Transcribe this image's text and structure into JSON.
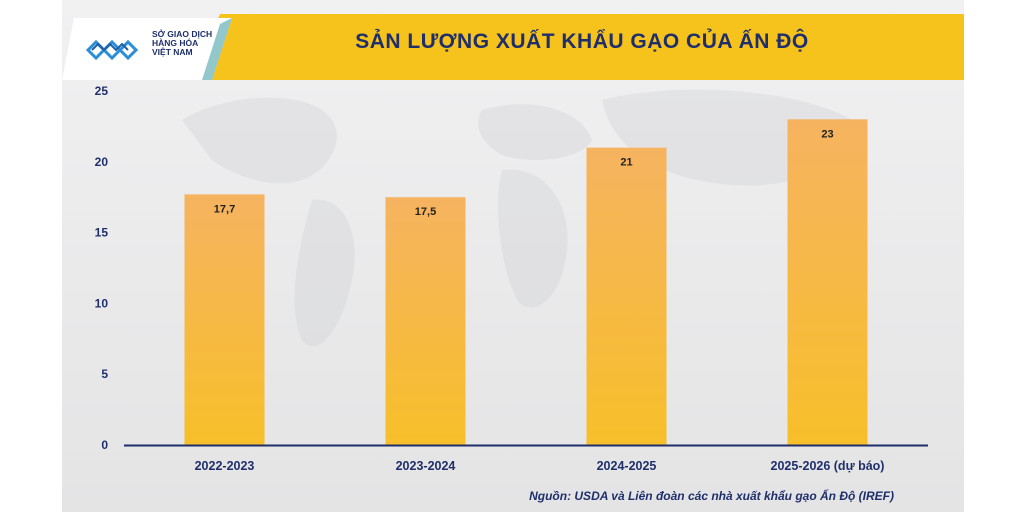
{
  "header": {
    "logo_lines": [
      "SỞ GIAO DỊCH",
      "HÀNG HÓA",
      "VIỆT NAM"
    ],
    "title": "SẢN LƯỢNG XUẤT KHẨU GẠO CỦA ẤN ĐỘ"
  },
  "colors": {
    "bar_top": "#f6b360",
    "bar_bottom": "#f7bf2a",
    "banner": "#f6c21c",
    "axis": "#1f2f6b",
    "text": "#1f2f6b"
  },
  "chart_data": {
    "type": "bar",
    "title": "SẢN LƯỢNG XUẤT KHẨU GẠO CỦA ẤN ĐỘ",
    "categories": [
      "2022-2023",
      "2023-2024",
      "2024-2025",
      "2025-2026 (dự báo)"
    ],
    "values": [
      17.7,
      17.5,
      21,
      23
    ],
    "value_labels": [
      "17,7",
      "17,5",
      "21",
      "23"
    ],
    "yticks": [
      "0",
      "5",
      "10",
      "15",
      "20",
      "25"
    ],
    "ylim": [
      0,
      25
    ],
    "grid": false,
    "legend": "none"
  },
  "footer": {
    "source": "Nguồn: USDA và Liên đoàn các nhà xuất khẩu gạo Ấn Độ (IREF)"
  }
}
